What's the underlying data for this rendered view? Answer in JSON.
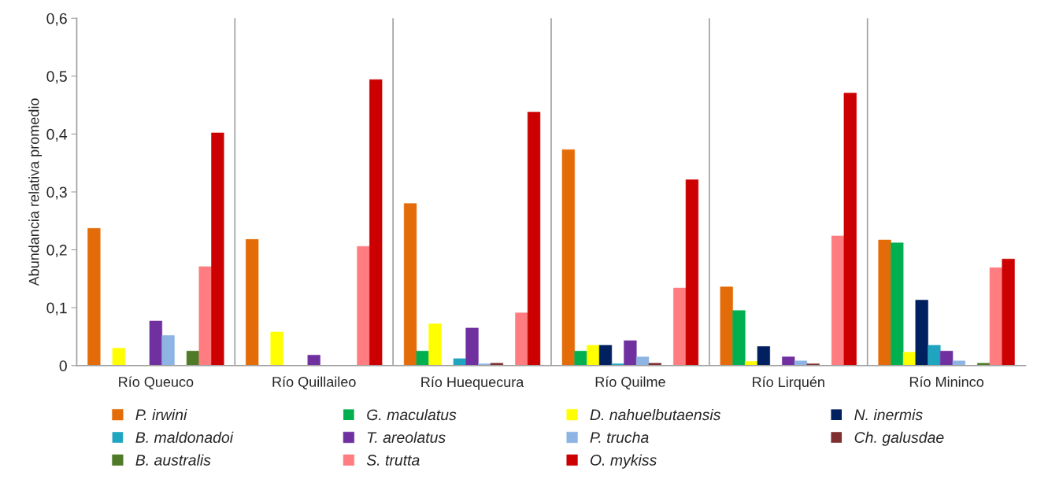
{
  "chart_data": {
    "type": "bar",
    "ylabel": "Abundancia relativa promedio",
    "categories": [
      "Río Queuco",
      "Río Quillaileo",
      "Río Huequecura",
      "Río Quilme",
      "Río Lirquén",
      "Río Mininco"
    ],
    "series": [
      {
        "name": "P. irwini",
        "color": "#e36c09",
        "values": [
          0.237,
          0.218,
          0.28,
          0.373,
          0.136,
          0.217
        ]
      },
      {
        "name": "G. maculatus",
        "color": "#00b050",
        "values": [
          0,
          0,
          0.025,
          0.025,
          0.095,
          0.212
        ]
      },
      {
        "name": "D. nahuelbutaensis",
        "color": "#ffff00",
        "values": [
          0.03,
          0.058,
          0.072,
          0.035,
          0.007,
          0.023
        ]
      },
      {
        "name": "N. inermis",
        "color": "#002060",
        "values": [
          0,
          0,
          0,
          0.035,
          0.033,
          0.113
        ]
      },
      {
        "name": "B. maldonadoi",
        "color": "#1fa5c0",
        "values": [
          0,
          0,
          0.012,
          0.003,
          0,
          0.035
        ]
      },
      {
        "name": "T. areolatus",
        "color": "#7030a0",
        "values": [
          0.077,
          0.018,
          0.065,
          0.043,
          0.015,
          0.025
        ]
      },
      {
        "name": "P. trucha",
        "color": "#8eb4e3",
        "values": [
          0.052,
          0,
          0.003,
          0.015,
          0.008,
          0.008
        ]
      },
      {
        "name": "Ch. galusdae",
        "color": "#7f2f2f",
        "values": [
          0,
          0,
          0.004,
          0.004,
          0.003,
          0
        ]
      },
      {
        "name": "B. australis",
        "color": "#4f7a28",
        "values": [
          0.025,
          0,
          0,
          0,
          0,
          0.004
        ]
      },
      {
        "name": "S. trutta",
        "color": "#ff7c80",
        "values": [
          0.171,
          0.206,
          0.091,
          0.134,
          0.224,
          0.169
        ]
      },
      {
        "name": "O. mykiss",
        "color": "#cc0000",
        "values": [
          0.402,
          0.494,
          0.438,
          0.321,
          0.471,
          0.184
        ]
      }
    ],
    "ylim": [
      0,
      0.6
    ],
    "yticks": [
      {
        "value": 0,
        "label": "0"
      },
      {
        "value": 0.1,
        "label": "0,1"
      },
      {
        "value": 0.2,
        "label": "0,2"
      },
      {
        "value": 0.3,
        "label": "0,3"
      },
      {
        "value": 0.4,
        "label": "0,4"
      },
      {
        "value": 0.5,
        "label": "0,5"
      },
      {
        "value": 0.6,
        "label": "0,6"
      }
    ],
    "grid": false,
    "legend": "bottom"
  }
}
